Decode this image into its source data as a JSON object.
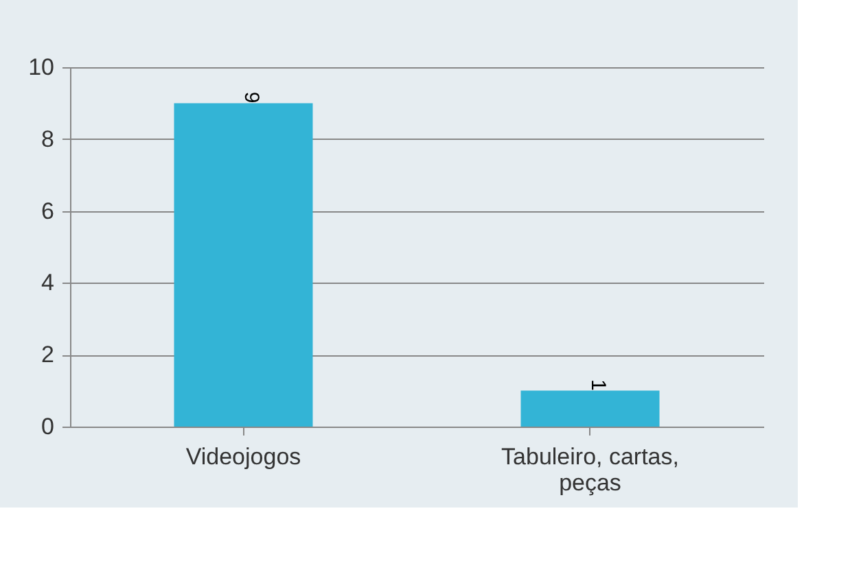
{
  "chart_data": {
    "type": "bar",
    "categories": [
      "Videojogos",
      "Tabuleiro, cartas, peças"
    ],
    "values": [
      9,
      1
    ],
    "color": "#33b4d6",
    "ylim": [
      0,
      10
    ],
    "yticks": [
      0,
      2,
      4,
      6,
      8,
      10
    ],
    "grid": "y",
    "data_labels": true
  }
}
